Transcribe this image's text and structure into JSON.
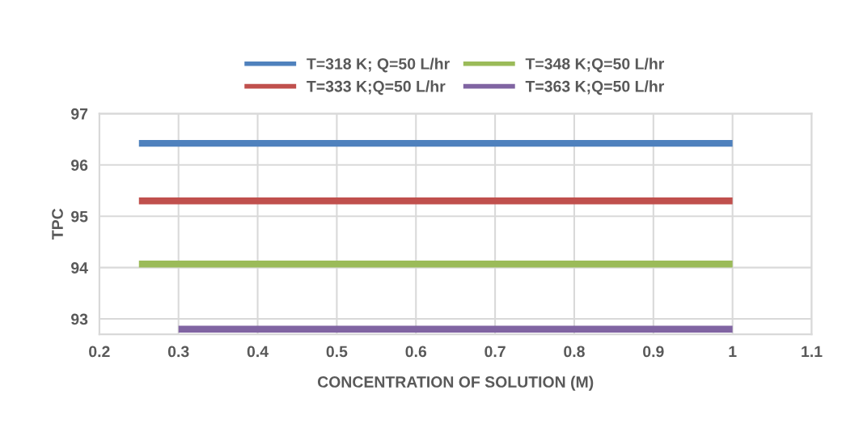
{
  "chart_data": {
    "type": "line",
    "xlabel": "CONCENTRATION OF SOLUTION (M)",
    "ylabel": "TPC",
    "xlim": [
      0.2,
      1.1
    ],
    "xticks": [
      0.2,
      0.3,
      0.4,
      0.5,
      0.6,
      0.7,
      0.8,
      0.9,
      {
        "value": 1.0,
        "label": "1"
      },
      1.1
    ],
    "ylim": [
      92.7,
      97
    ],
    "yticks": [
      93,
      94,
      95,
      96,
      97
    ],
    "grid": true,
    "legend": "top",
    "marker": "none",
    "line_style": "solid",
    "series": [
      {
        "name": "T=318 K; Q=50 L/hr",
        "color": "#4f81bd",
        "x": [
          0.25,
          1.0
        ],
        "values": [
          96.42,
          96.42
        ]
      },
      {
        "name": "T=333 K;Q=50 L/hr",
        "color": "#c0504d",
        "x": [
          0.25,
          1.0
        ],
        "values": [
          95.3,
          95.3
        ]
      },
      {
        "name": "T=348 K;Q=50 L/hr",
        "color": "#9bbb59",
        "x": [
          0.25,
          1.0
        ],
        "values": [
          94.07,
          94.07
        ]
      },
      {
        "name": "T=363 K;Q=50 L/hr",
        "color": "#8064a2",
        "x": [
          0.3,
          1.0
        ],
        "values": [
          92.8,
          92.8
        ]
      }
    ]
  }
}
